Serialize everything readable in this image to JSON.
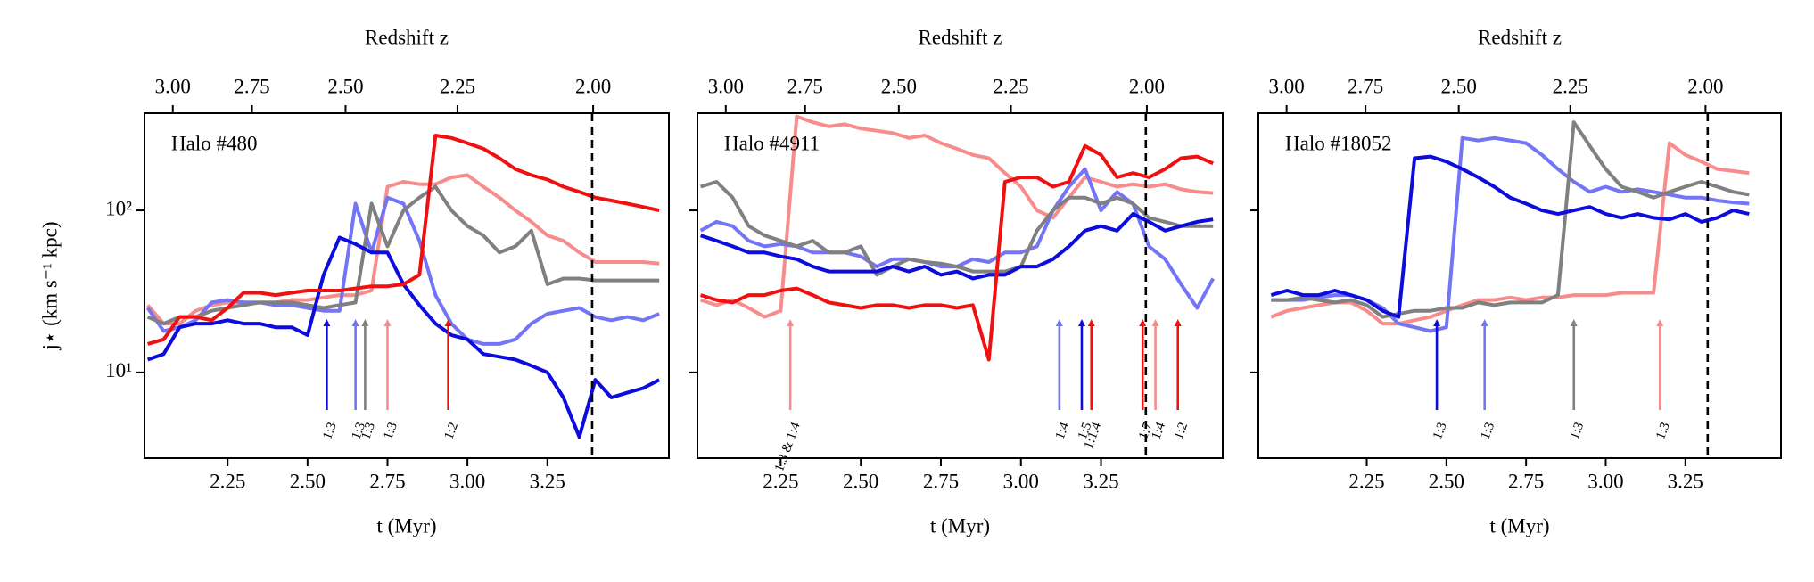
{
  "chart_data": [
    {
      "type": "line",
      "title": "Halo #480",
      "xlabel": "t (Myr)",
      "ylabel": "j⋆ (km s⁻¹ kpc)",
      "x2label": "Redshift z",
      "yscale": "log",
      "xlim": [
        1.99,
        3.63
      ],
      "ylim": [
        2.96,
        398
      ],
      "xticks": [
        2.25,
        {
          "value": 2.5,
          "label": "2.50"
        },
        2.75,
        {
          "value": 3,
          "label": "3.00"
        },
        3.25
      ],
      "yticks": [
        {
          "value": 10,
          "label": "10¹"
        },
        {
          "value": 100,
          "label": "10²"
        }
      ],
      "x2lim": [
        3.1,
        1.88
      ],
      "x2ticks": [
        {
          "value": 3,
          "label": "3.00"
        },
        2.75,
        {
          "value": 2.5,
          "label": "2.50"
        },
        2.25,
        {
          "value": 2,
          "label": "2.00"
        }
      ],
      "vline": 3.39,
      "x": [
        2.0,
        2.05,
        2.1,
        2.15,
        2.2,
        2.25,
        2.3,
        2.35,
        2.4,
        2.45,
        2.5,
        2.55,
        2.6,
        2.65,
        2.7,
        2.75,
        2.8,
        2.85,
        2.9,
        2.95,
        3.0,
        3.05,
        3.1,
        3.15,
        3.2,
        3.25,
        3.3,
        3.35,
        3.4,
        3.45,
        3.5,
        3.55,
        3.6
      ],
      "series": [
        {
          "color": "#f88c8c",
          "values": [
            26,
            20,
            20,
            24,
            26,
            27,
            27,
            27,
            27,
            28,
            28,
            29,
            30,
            30,
            32,
            140,
            150,
            145,
            145,
            160,
            165,
            140,
            120,
            100,
            85,
            70,
            65,
            55,
            48,
            48,
            48,
            48,
            47
          ]
        },
        {
          "color": "#7474f6",
          "values": [
            25,
            18,
            19,
            21,
            27,
            28,
            27,
            27,
            26,
            26,
            25,
            24,
            24,
            110,
            55,
            120,
            110,
            65,
            30,
            20,
            16,
            15,
            15,
            16,
            20,
            23,
            24,
            25,
            22,
            21,
            22,
            21,
            23
          ]
        },
        {
          "color": "#808080",
          "values": [
            22,
            20,
            22,
            22,
            24,
            25,
            26,
            27,
            27,
            27,
            26,
            25,
            26,
            27,
            110,
            60,
            100,
            120,
            140,
            100,
            80,
            70,
            55,
            60,
            75,
            35,
            38,
            38,
            37,
            37,
            37,
            37,
            37
          ]
        },
        {
          "color": "#0c0cdc",
          "values": [
            12,
            13,
            19,
            20,
            20,
            21,
            20,
            20,
            19,
            19,
            17,
            40,
            68,
            62,
            55,
            55,
            35,
            26,
            20,
            17,
            16,
            13,
            12.5,
            12,
            11,
            10,
            7,
            4,
            9,
            7,
            7.5,
            8,
            9
          ]
        },
        {
          "color": "#f01010",
          "values": [
            15,
            16,
            22,
            22,
            21,
            25,
            31,
            31,
            30,
            31,
            32,
            32,
            32,
            33,
            34,
            34,
            35,
            40,
            290,
            280,
            260,
            240,
            210,
            180,
            165,
            155,
            140,
            130,
            120,
            115,
            110,
            105,
            100
          ]
        }
      ],
      "annotations": [
        {
          "text": "1:3",
          "x": 2.56,
          "color": "#0c0cdc"
        },
        {
          "text": "1:3",
          "x": 2.65,
          "color": "#7474f6"
        },
        {
          "text": "1:3",
          "x": 2.68,
          "color": "#808080"
        },
        {
          "text": "1:3",
          "x": 2.75,
          "color": "#f88c8c"
        },
        {
          "text": "1:2",
          "x": 2.94,
          "color": "#f01010"
        }
      ]
    },
    {
      "type": "line",
      "title": "Halo #4911",
      "xlabel": "t (Myr)",
      "x2label": "Redshift z",
      "yscale": "log",
      "xlim": [
        1.99,
        3.63
      ],
      "ylim": [
        2.96,
        398
      ],
      "xticks": [
        2.25,
        {
          "value": 2.5,
          "label": "2.50"
        },
        2.75,
        {
          "value": 3,
          "label": "3.00"
        },
        3.25
      ],
      "yticks": [
        10,
        100
      ],
      "x2lim": [
        3.1,
        1.88
      ],
      "x2ticks": [
        {
          "value": 3,
          "label": "3.00"
        },
        2.75,
        {
          "value": 2.5,
          "label": "2.50"
        },
        2.25,
        {
          "value": 2,
          "label": "2.00"
        }
      ],
      "vline": 3.39,
      "x": [
        2.0,
        2.05,
        2.1,
        2.15,
        2.2,
        2.25,
        2.3,
        2.35,
        2.4,
        2.45,
        2.5,
        2.55,
        2.6,
        2.65,
        2.7,
        2.75,
        2.8,
        2.85,
        2.9,
        2.95,
        3.0,
        3.05,
        3.1,
        3.15,
        3.2,
        3.25,
        3.3,
        3.35,
        3.4,
        3.45,
        3.5,
        3.55,
        3.6
      ],
      "series": [
        {
          "color": "#f88c8c",
          "values": [
            28,
            26,
            28,
            25,
            22,
            24,
            380,
            350,
            330,
            340,
            320,
            310,
            300,
            280,
            290,
            260,
            240,
            220,
            210,
            170,
            140,
            100,
            90,
            120,
            160,
            150,
            140,
            145,
            140,
            145,
            135,
            130,
            128
          ]
        },
        {
          "color": "#7474f6",
          "values": [
            75,
            85,
            80,
            65,
            60,
            62,
            60,
            55,
            55,
            55,
            52,
            45,
            50,
            50,
            48,
            45,
            45,
            50,
            48,
            55,
            55,
            60,
            100,
            140,
            180,
            100,
            130,
            110,
            60,
            50,
            35,
            25,
            38
          ]
        },
        {
          "color": "#808080",
          "values": [
            140,
            150,
            120,
            80,
            70,
            65,
            60,
            65,
            55,
            55,
            60,
            40,
            45,
            50,
            48,
            47,
            45,
            42,
            42,
            42,
            45,
            75,
            100,
            120,
            120,
            110,
            120,
            110,
            90,
            85,
            80,
            80,
            80
          ]
        },
        {
          "color": "#0c0cdc",
          "values": [
            70,
            65,
            60,
            55,
            55,
            52,
            50,
            45,
            42,
            42,
            42,
            42,
            45,
            42,
            45,
            40,
            42,
            38,
            40,
            40,
            45,
            45,
            50,
            60,
            75,
            80,
            75,
            95,
            85,
            75,
            80,
            85,
            88
          ]
        },
        {
          "color": "#f01010",
          "values": [
            30,
            28,
            27,
            30,
            30,
            32,
            33,
            30,
            27,
            26,
            25,
            26,
            26,
            25,
            26,
            26,
            25,
            26,
            12,
            150,
            160,
            160,
            140,
            150,
            250,
            220,
            160,
            170,
            160,
            180,
            210,
            215,
            195
          ]
        }
      ],
      "annotations": [
        {
          "text": "1:3 & 1:4",
          "x": 2.28,
          "color": "#f88c8c"
        },
        {
          "text": "1:4",
          "x": 3.12,
          "color": "#7474f6"
        },
        {
          "text": "1:5",
          "x": 3.19,
          "color": "#0c0cdc"
        },
        {
          "text": "1:1.4",
          "x": 3.22,
          "color": "#f01010"
        },
        {
          "text": "1:7",
          "x": 3.38,
          "color": "#f01010"
        },
        {
          "text": "1:4",
          "x": 3.42,
          "color": "#f88c8c"
        },
        {
          "text": "1:2",
          "x": 3.49,
          "color": "#f01010"
        }
      ]
    },
    {
      "type": "line",
      "title": "Halo #18052",
      "xlabel": "t (Myr)",
      "x2label": "Redshift z",
      "yscale": "log",
      "xlim": [
        1.91,
        3.55
      ],
      "ylim": [
        2.96,
        398
      ],
      "xticks": [
        2.25,
        {
          "value": 2.5,
          "label": "2.50"
        },
        2.75,
        {
          "value": 3,
          "label": "3.00"
        },
        3.25
      ],
      "yticks": [
        10,
        100
      ],
      "x2lim": [
        3.1,
        1.88
      ],
      "x2ticks": [
        {
          "value": 3,
          "label": "3.00"
        },
        2.75,
        {
          "value": 2.5,
          "label": "2.50"
        },
        2.25,
        {
          "value": 2,
          "label": "2.00"
        }
      ],
      "vline": 3.32,
      "x": [
        1.95,
        2.0,
        2.05,
        2.1,
        2.15,
        2.2,
        2.25,
        2.3,
        2.35,
        2.4,
        2.45,
        2.5,
        2.55,
        2.6,
        2.65,
        2.7,
        2.75,
        2.8,
        2.85,
        2.9,
        2.95,
        3.0,
        3.05,
        3.1,
        3.15,
        3.2,
        3.25,
        3.3,
        3.35,
        3.4,
        3.45
      ],
      "series": [
        {
          "color": "#f88c8c",
          "values": [
            22,
            24,
            25,
            26,
            27,
            27,
            24,
            20,
            20,
            21,
            22,
            24,
            26,
            28,
            28,
            29,
            28,
            29,
            29,
            30,
            30,
            30,
            31,
            31,
            31,
            260,
            220,
            200,
            180,
            175,
            170
          ]
        },
        {
          "color": "#7474f6",
          "values": [
            28,
            28,
            28,
            29,
            30,
            30,
            28,
            25,
            20,
            19,
            18,
            19,
            280,
            270,
            280,
            270,
            260,
            220,
            180,
            150,
            130,
            140,
            130,
            135,
            130,
            125,
            120,
            120,
            115,
            112,
            110
          ]
        },
        {
          "color": "#808080",
          "values": [
            28,
            28,
            29,
            28,
            27,
            28,
            26,
            22,
            23,
            24,
            24,
            25,
            25,
            27,
            26,
            27,
            27,
            27,
            30,
            350,
            250,
            180,
            140,
            130,
            120,
            130,
            140,
            150,
            140,
            130,
            125
          ]
        },
        {
          "color": "#0c0cdc",
          "values": [
            30,
            32,
            30,
            30,
            32,
            30,
            28,
            24,
            22,
            210,
            215,
            200,
            180,
            160,
            140,
            120,
            110,
            100,
            95,
            100,
            105,
            95,
            90,
            95,
            90,
            88,
            95,
            85,
            90,
            100,
            95
          ]
        }
      ],
      "annotations": [
        {
          "text": "1:3",
          "x": 2.47,
          "color": "#0c0cdc"
        },
        {
          "text": "1:3",
          "x": 2.62,
          "color": "#7474f6"
        },
        {
          "text": "1:3",
          "x": 2.9,
          "color": "#808080"
        },
        {
          "text": "1:3",
          "x": 3.17,
          "color": "#f88c8c"
        }
      ]
    }
  ]
}
